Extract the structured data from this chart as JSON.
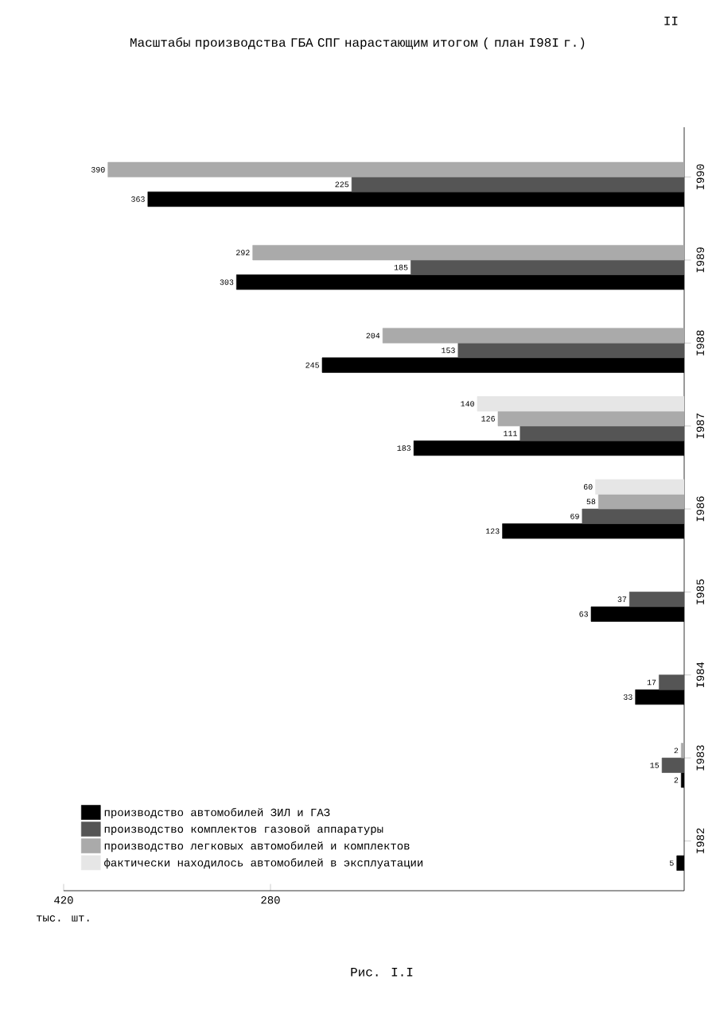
{
  "chart_data": {
    "type": "bar",
    "orientation": "horizontal",
    "title": "Масштабы производства ГБА СПГ нарастающим итогом ( план I98I г.)",
    "xlabel": "тыс. шт.",
    "categories": [
      "I990",
      "I989",
      "I988",
      "I987",
      "I986",
      "I985",
      "I984",
      "I983",
      "I982"
    ],
    "series": [
      {
        "name": "производство автомобилей ЗИЛ и ГАЗ",
        "color": "#000000",
        "values": [
          363,
          303,
          245,
          183,
          123,
          63,
          33,
          2,
          5
        ]
      },
      {
        "name": "производство комплектов газовой аппаратуры",
        "color": "#555555",
        "values": [
          225,
          185,
          153,
          111,
          69,
          37,
          17,
          15,
          null
        ]
      },
      {
        "name": "производство легковых автомобилей и комплектов",
        "color": "#aaaaaa",
        "values": [
          390,
          292,
          204,
          126,
          58,
          null,
          null,
          2,
          null
        ]
      },
      {
        "name": "фактически находилось автомобилей в эксплуатации",
        "color": "#e6e6e6",
        "values": [
          null,
          null,
          null,
          140,
          60,
          null,
          null,
          null,
          null
        ]
      }
    ],
    "xlim": [
      420,
      0
    ],
    "xticks": [
      420,
      280
    ],
    "data_labels": true,
    "legend": "bottom left",
    "annotations": [
      "Рис. I.I",
      "II"
    ]
  }
}
